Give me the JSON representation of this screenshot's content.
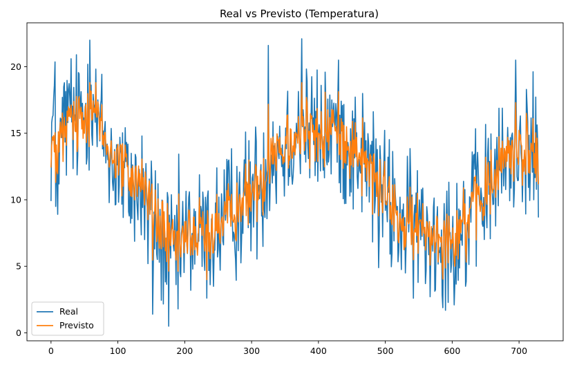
{
  "chart_data": {
    "type": "line",
    "title": "Real vs Previsto (Temperatura)",
    "xlabel": "",
    "ylabel": "",
    "xlim": [
      -36,
      766
    ],
    "ylim": [
      -0.6,
      23.3
    ],
    "xticks": [
      0,
      100,
      200,
      300,
      400,
      500,
      600,
      700
    ],
    "yticks": [
      0,
      5,
      10,
      15,
      20
    ],
    "legend": {
      "placement": "lower-left"
    },
    "grid": false,
    "colors": {
      "Real": "#1f77b4",
      "Previsto": "#ff7f0e"
    },
    "series_anchors": [
      {
        "name": "Real",
        "x": [
          0,
          5,
          10,
          20,
          30,
          40,
          50,
          60,
          70,
          80,
          90,
          100,
          110,
          120,
          130,
          140,
          150,
          160,
          170,
          180,
          190,
          200,
          210,
          220,
          230,
          240,
          250,
          260,
          270,
          280,
          290,
          300,
          310,
          320,
          330,
          340,
          350,
          360,
          370,
          380,
          390,
          400,
          410,
          420,
          430,
          440,
          450,
          460,
          470,
          480,
          490,
          500,
          510,
          520,
          530,
          540,
          550,
          560,
          570,
          580,
          590,
          600,
          610,
          620,
          630,
          640,
          650,
          660,
          670,
          680,
          690,
          700,
          710,
          720,
          729
        ],
        "y": [
          14.5,
          17.0,
          12.5,
          16.0,
          15.5,
          16.0,
          16.5,
          18.5,
          15.5,
          14.5,
          13.0,
          12.5,
          11.5,
          11.0,
          11.0,
          10.5,
          9.0,
          7.5,
          6.5,
          5.5,
          7.0,
          7.0,
          7.5,
          7.5,
          7.0,
          7.5,
          8.0,
          8.5,
          9.0,
          9.5,
          10.0,
          10.5,
          11.0,
          12.0,
          13.5,
          14.0,
          14.0,
          15.0,
          15.5,
          15.5,
          15.0,
          14.5,
          15.0,
          15.5,
          15.5,
          14.5,
          14.0,
          13.5,
          13.0,
          12.0,
          11.0,
          10.0,
          9.5,
          8.5,
          8.0,
          8.0,
          8.0,
          7.5,
          7.5,
          7.5,
          7.5,
          7.5,
          8.0,
          8.5,
          9.0,
          10.0,
          10.5,
          11.5,
          12.0,
          13.0,
          13.5,
          14.5,
          14.0,
          13.5,
          13.5
        ],
        "amplitude": 2.5,
        "spikes": [
          {
            "x": 7,
            "y": 9.5
          },
          {
            "x": 58,
            "y": 22.0
          },
          {
            "x": 30,
            "y": 20.6
          },
          {
            "x": 130,
            "y": 8.5
          },
          {
            "x": 145,
            "y": 5.2
          },
          {
            "x": 152,
            "y": 1.4
          },
          {
            "x": 176,
            "y": 0.5
          },
          {
            "x": 190,
            "y": 1.8
          },
          {
            "x": 325,
            "y": 21.6
          },
          {
            "x": 375,
            "y": 22.1
          },
          {
            "x": 430,
            "y": 20.5
          },
          {
            "x": 490,
            "y": 4.9
          },
          {
            "x": 530,
            "y": 4.5
          },
          {
            "x": 560,
            "y": 3.7
          },
          {
            "x": 603,
            "y": 2.1
          },
          {
            "x": 620,
            "y": 3.5
          },
          {
            "x": 695,
            "y": 20.5
          },
          {
            "x": 722,
            "y": 10.0
          }
        ]
      },
      {
        "name": "Previsto",
        "x": [
          0,
          10,
          20,
          30,
          40,
          50,
          60,
          70,
          80,
          90,
          100,
          110,
          120,
          130,
          140,
          150,
          160,
          170,
          180,
          190,
          200,
          210,
          220,
          230,
          240,
          250,
          260,
          270,
          280,
          290,
          300,
          310,
          320,
          330,
          340,
          350,
          360,
          370,
          380,
          390,
          400,
          410,
          420,
          430,
          440,
          450,
          460,
          470,
          480,
          490,
          500,
          510,
          520,
          530,
          540,
          550,
          560,
          570,
          580,
          590,
          600,
          610,
          620,
          630,
          640,
          650,
          660,
          670,
          680,
          690,
          700,
          710,
          720,
          729
        ],
        "y": [
          14.3,
          13.5,
          15.0,
          15.5,
          15.5,
          16.0,
          17.5,
          16.0,
          14.5,
          13.5,
          13.0,
          12.0,
          11.5,
          11.5,
          11.0,
          9.5,
          8.0,
          7.5,
          6.5,
          7.0,
          7.0,
          7.5,
          7.5,
          7.0,
          7.5,
          8.0,
          8.5,
          9.0,
          9.5,
          10.0,
          10.5,
          11.0,
          12.0,
          13.5,
          14.0,
          14.0,
          15.0,
          15.0,
          15.5,
          15.0,
          14.5,
          15.0,
          15.5,
          15.5,
          14.5,
          14.0,
          13.5,
          13.0,
          12.0,
          11.0,
          10.0,
          9.5,
          8.5,
          8.0,
          8.0,
          8.0,
          7.5,
          7.5,
          7.5,
          7.5,
          7.5,
          8.0,
          8.5,
          9.5,
          10.0,
          10.5,
          11.5,
          12.0,
          13.0,
          13.5,
          14.5,
          14.0,
          13.5,
          13.5
        ],
        "amplitude": 1.3
      }
    ]
  }
}
